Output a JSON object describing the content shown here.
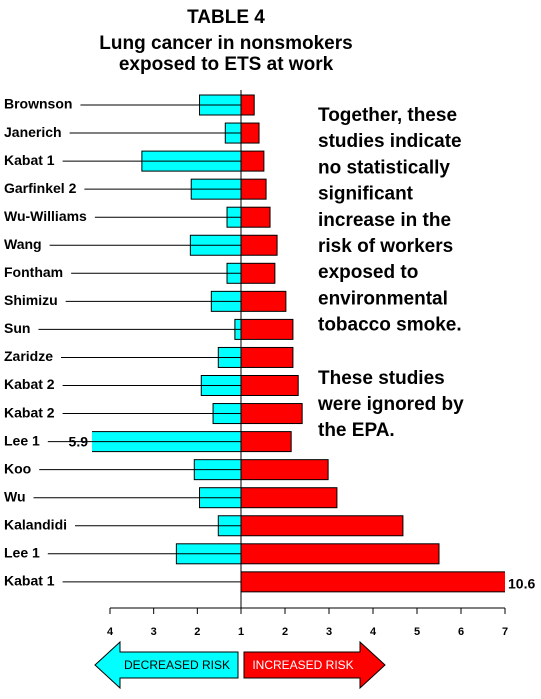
{
  "chart_data": {
    "type": "diverging_bar",
    "title": "TABLE 4",
    "subtitle": [
      "Lung cancer in nonsmokers",
      "exposed to ETS at work"
    ],
    "categories": [
      "Brownson",
      "Janerich",
      "Kabat 1",
      "Garfinkel 2",
      "Wu-Williams",
      "Wang",
      "Fontham",
      "Shimizu",
      "Sun",
      "Zaridze",
      "Kabat 2",
      "Kabat 2",
      "Lee 1",
      "Koo",
      "Wu",
      "Kalandidi",
      "Lee 1",
      "Kabat 1"
    ],
    "left_values": [
      1.95,
      1.36,
      3.27,
      2.14,
      1.32,
      2.16,
      1.32,
      1.68,
      1.14,
      1.52,
      1.91,
      1.64,
      5.9,
      2.07,
      1.95,
      1.52,
      2.48,
      1
    ],
    "right_values": [
      1.3,
      1.41,
      1.52,
      1.57,
      1.66,
      1.82,
      1.77,
      2.02,
      2.18,
      2.18,
      2.3,
      2.39,
      2.14,
      2.98,
      3.18,
      4.68,
      5.5,
      10.6
    ],
    "left_color": "#00ffff",
    "right_color": "#ff0000",
    "left_xlim": [
      1,
      4
    ],
    "left_xticks": [
      4,
      3,
      2
    ],
    "xlim": [
      1,
      7
    ],
    "xticks": [
      1,
      2,
      3,
      4,
      5,
      6,
      7
    ],
    "annotations": [
      [
        "Together, these",
        "studies indicate",
        "no statistically",
        "significant",
        "increase in the",
        "risk of workers",
        "exposed to",
        "environmental",
        "tobacco smoke."
      ],
      [
        "These studies",
        "were ignored by",
        "the EPA."
      ]
    ],
    "arrow_labels": [
      "DECREASED RISK",
      "INCREASED RISK"
    ]
  }
}
